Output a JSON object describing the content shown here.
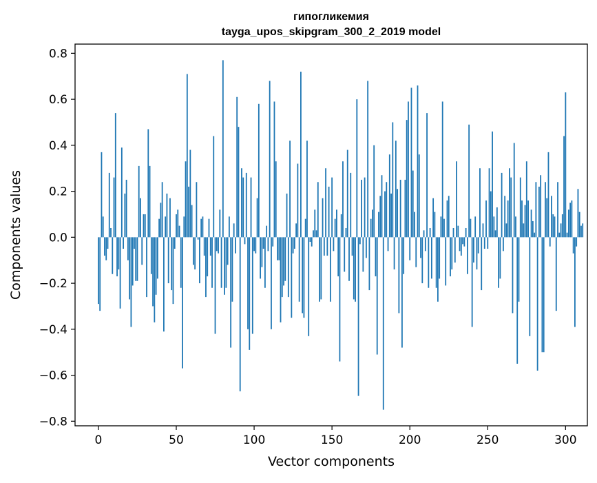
{
  "chart_data": {
    "type": "bar",
    "title": "гипогликемия",
    "subtitle": "tayga_upos_skipgram_300_2_2019 model",
    "xlabel": "Vector components",
    "ylabel": "Components values",
    "xlim": [
      -15,
      314
    ],
    "ylim": [
      -0.82,
      0.84
    ],
    "xticks": [
      0,
      50,
      100,
      150,
      200,
      250,
      300
    ],
    "yticks": [
      -0.8,
      -0.6,
      -0.4,
      -0.2,
      0.0,
      0.2,
      0.4,
      0.6,
      0.8
    ],
    "xtick_labels": [
      "0",
      "50",
      "100",
      "150",
      "200",
      "250",
      "300"
    ],
    "ytick_labels": [
      "−0.8",
      "−0.6",
      "−0.4",
      "−0.2",
      "0.0",
      "0.2",
      "0.4",
      "0.6",
      "0.8"
    ],
    "grid": false,
    "color": "#1f77b4",
    "values": [
      -0.29,
      -0.32,
      0.37,
      0.09,
      -0.08,
      -0.1,
      -0.05,
      0.28,
      0.04,
      -0.16,
      0.26,
      0.54,
      -0.17,
      -0.14,
      -0.31,
      0.39,
      -0.05,
      0.19,
      0.25,
      -0.1,
      -0.27,
      -0.39,
      -0.21,
      -0.05,
      -0.19,
      -0.19,
      0.31,
      0.17,
      -0.12,
      0.1,
      0.1,
      -0.26,
      0.47,
      0.31,
      -0.16,
      -0.3,
      -0.37,
      -0.25,
      -0.18,
      0.08,
      0.15,
      0.24,
      -0.41,
      0.09,
      0.19,
      -0.2,
      0.17,
      -0.23,
      -0.29,
      -0.05,
      0.1,
      0.12,
      0.05,
      -0.22,
      -0.57,
      0.09,
      0.33,
      0.71,
      0.22,
      0.38,
      0.14,
      -0.12,
      -0.14,
      0.24,
      -0.01,
      -0.2,
      0.08,
      0.09,
      -0.08,
      -0.26,
      -0.17,
      0.08,
      -0.08,
      -0.22,
      0.44,
      -0.42,
      -0.06,
      -0.07,
      0.12,
      -0.22,
      0.77,
      -0.25,
      -0.22,
      -0.12,
      0.09,
      -0.48,
      -0.28,
      0.06,
      -0.07,
      0.61,
      0.48,
      -0.67,
      0.3,
      0.26,
      -0.03,
      0.28,
      -0.4,
      -0.49,
      0.26,
      -0.42,
      -0.06,
      -0.07,
      0.17,
      0.58,
      -0.18,
      -0.13,
      -0.05,
      -0.22,
      0.05,
      -0.06,
      0.68,
      -0.4,
      -0.04,
      0.59,
      0.33,
      -0.1,
      -0.1,
      -0.37,
      -0.26,
      -0.21,
      -0.19,
      0.19,
      -0.26,
      0.42,
      -0.35,
      -0.07,
      -0.05,
      0.06,
      0.32,
      -0.28,
      0.72,
      -0.33,
      -0.35,
      0.08,
      0.42,
      -0.43,
      -0.02,
      -0.04,
      0.03,
      0.12,
      0.03,
      0.24,
      -0.28,
      -0.27,
      0.17,
      -0.08,
      0.3,
      -0.08,
      0.22,
      -0.28,
      0.26,
      -0.06,
      0.08,
      0.12,
      -0.17,
      -0.54,
      0.1,
      0.33,
      -0.15,
      0.04,
      0.38,
      -0.19,
      0.28,
      -0.08,
      -0.27,
      -0.28,
      0.6,
      -0.69,
      -0.03,
      0.25,
      -0.15,
      0.26,
      -0.09,
      0.68,
      -0.23,
      0.08,
      0.12,
      0.4,
      -0.17,
      -0.51,
      0.11,
      0.18,
      0.27,
      -0.75,
      0.2,
      0.24,
      -0.06,
      0.36,
      0.19,
      0.5,
      -0.14,
      0.42,
      0.21,
      -0.33,
      0.25,
      -0.48,
      -0.16,
      0.25,
      0.51,
      0.59,
      -0.1,
      0.65,
      0.29,
      0.11,
      -0.13,
      0.66,
      0.36,
      -0.09,
      -0.2,
      0.03,
      -0.06,
      0.54,
      -0.22,
      0.04,
      -0.18,
      0.17,
      0.11,
      -0.22,
      -0.28,
      -0.18,
      0.09,
      0.59,
      0.08,
      -0.21,
      0.16,
      0.18,
      -0.17,
      -0.14,
      0.04,
      -0.11,
      0.33,
      0.05,
      -0.06,
      -0.08,
      -0.03,
      -0.04,
      0.04,
      -0.16,
      0.49,
      0.08,
      -0.39,
      -0.11,
      0.09,
      -0.14,
      -0.07,
      0.3,
      -0.23,
      0.06,
      -0.05,
      0.16,
      -0.05,
      0.3,
      0.2,
      0.46,
      0.09,
      0.03,
      0.13,
      -0.22,
      -0.18,
      0.28,
      -0.06,
      0.18,
      0.06,
      0.16,
      0.3,
      0.26,
      -0.33,
      0.41,
      0.09,
      -0.55,
      -0.28,
      0.26,
      0.16,
      0.06,
      0.14,
      0.33,
      0.16,
      -0.43,
      0.12,
      0.07,
      0.02,
      0.24,
      -0.58,
      0.22,
      0.27,
      -0.5,
      -0.5,
      0.24,
      0.17,
      0.37,
      -0.04,
      0.18,
      0.1,
      0.09,
      -0.32,
      0.24,
      0.02,
      0.06,
      0.1,
      0.44,
      0.63,
      0.02,
      0.12,
      0.15,
      0.16,
      -0.07,
      -0.39,
      -0.04,
      0.21,
      0.11,
      0.05,
      0.06
    ]
  }
}
